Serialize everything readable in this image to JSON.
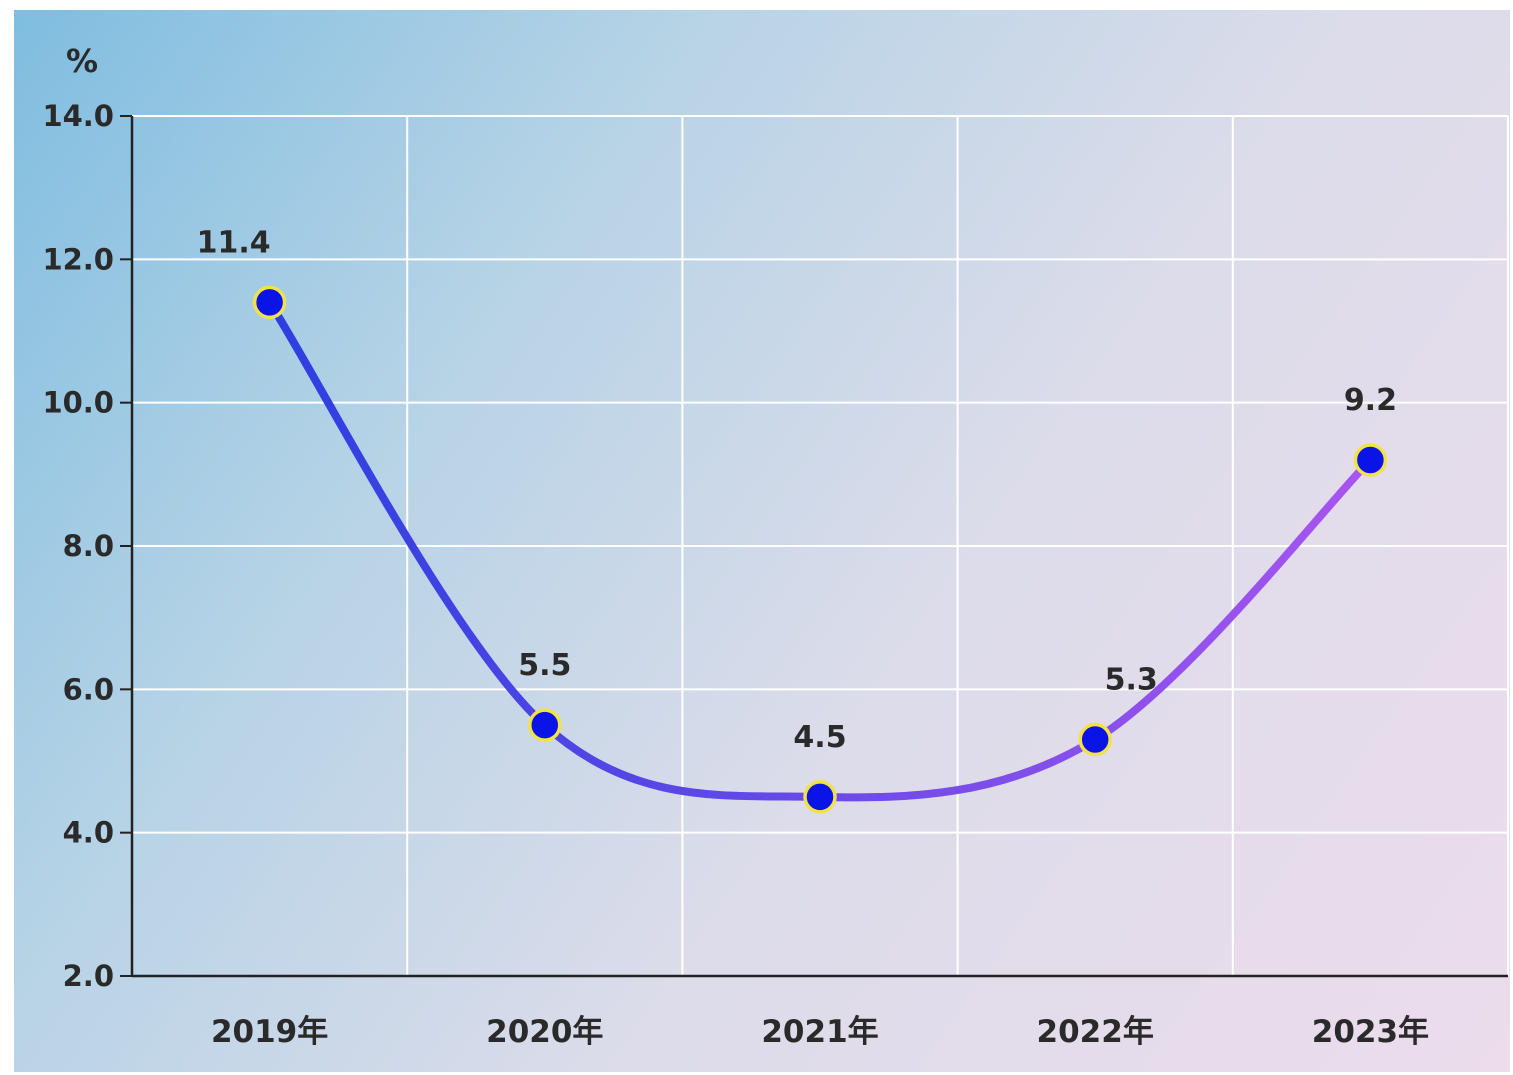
{
  "chart_data": {
    "type": "line",
    "categories": [
      "2019年",
      "2020年",
      "2021年",
      "2022年",
      "2023年"
    ],
    "series": [
      {
        "values": [
          11.4,
          5.5,
          4.5,
          5.3,
          9.2
        ]
      }
    ],
    "data_labels": [
      "11.4",
      "5.5",
      "4.5",
      "5.3",
      "9.2"
    ],
    "ylabel": "%",
    "ylim": [
      2.0,
      14.0
    ],
    "yticks": [
      "2.0",
      "4.0",
      "6.0",
      "8.0",
      "10.0",
      "12.0",
      "14.0"
    ],
    "ytick_values": [
      2,
      4,
      6,
      8,
      10,
      12,
      14
    ],
    "grid": true,
    "smooth": true,
    "colors": {
      "line_start": "#2c3fe0",
      "line_end": "#a855f0",
      "marker_fill": "#0a14e6",
      "marker_stroke": "#f2e24a",
      "grid": "#ffffff",
      "axis": "#222222"
    }
  }
}
